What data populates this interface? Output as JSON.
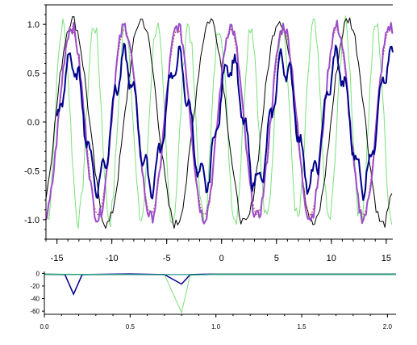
{
  "chart_data": [
    {
      "type": "line",
      "xlim": [
        -16,
        15.6
      ],
      "ylim": [
        -1.2,
        1.2
      ],
      "x_ticks": [
        -15,
        -10,
        -5,
        0,
        5,
        10,
        15
      ],
      "x_tick_labels": [
        "-15",
        "-10",
        "-5",
        "0",
        "5",
        "10",
        "15"
      ],
      "y_ticks": [
        1.0,
        0.5,
        0.0,
        -0.5,
        -1.0
      ],
      "y_tick_labels": [
        "1.0",
        "0.5",
        "0.0",
        "-0.5",
        "-1.0"
      ],
      "grid": false,
      "series": [
        {
          "style": "solid-thin",
          "color": "#7CE07C",
          "function": "sin(2.2x)",
          "x_range": [
            -16,
            15.6
          ],
          "amplitude": 1.0,
          "y_start": 0.9,
          "y_end": 0.9
        },
        {
          "style": "solid-thin",
          "color": "#000000",
          "function": "sin(x)",
          "x_range": [
            -16,
            15.6
          ],
          "amplitude": 1.1,
          "y_start": -0.2,
          "y_end": -0.1
        },
        {
          "style": "dotted",
          "color": "#C0504D",
          "function": "sin(1.3x)",
          "x_range": [
            -16,
            15.6
          ],
          "amplitude": 0.95,
          "y_start": -0.6,
          "y_end": -0.9
        },
        {
          "style": "solid-thick",
          "color": "#9B4DCA",
          "function": "sin(1.3x) + noise",
          "x_range": [
            -16,
            15.6
          ],
          "amplitude": 1.0,
          "y_start": -0.95,
          "y_end": -0.95
        },
        {
          "style": "solid-thick",
          "color": "#00008B",
          "function": "0.65 sin(1.3x) + 0.15 sin(6x)",
          "x_range": [
            -15,
            15.6
          ],
          "amplitude": 0.7,
          "y_start": -0.4,
          "y_end": -0.55
        }
      ]
    },
    {
      "type": "line",
      "xlim": [
        0,
        2.05
      ],
      "ylim": [
        -65,
        3
      ],
      "x_ticks": [
        0.0,
        0.5,
        1.0,
        1.5,
        2.0
      ],
      "x_tick_labels": [
        "0.0",
        "0.5",
        "1.0",
        "1.5",
        "2.0"
      ],
      "y_ticks": [
        0,
        -20,
        -40,
        -60
      ],
      "y_tick_labels": [
        "0",
        "-20",
        "-40",
        "-60"
      ],
      "grid": false,
      "series": [
        {
          "color": "#00008B",
          "points": [
            [
              0.0,
              -1
            ],
            [
              0.12,
              -2
            ],
            [
              0.17,
              -33
            ],
            [
              0.22,
              -2
            ],
            [
              0.5,
              -1
            ],
            [
              0.7,
              -2
            ],
            [
              0.8,
              -17
            ],
            [
              0.85,
              -2
            ],
            [
              1.0,
              -1
            ],
            [
              1.5,
              -1
            ],
            [
              2.05,
              -1
            ]
          ]
        },
        {
          "color": "#7CE07C",
          "points": [
            [
              0.0,
              -1
            ],
            [
              0.7,
              -2
            ],
            [
              0.8,
              -62
            ],
            [
              0.85,
              -3
            ],
            [
              1.0,
              -1
            ],
            [
              2.05,
              -1
            ]
          ]
        },
        {
          "color": "#008080",
          "points": [
            [
              0.0,
              -2
            ],
            [
              0.3,
              -2
            ],
            [
              0.6,
              -2
            ],
            [
              1.0,
              -2
            ],
            [
              1.5,
              -2
            ],
            [
              2.05,
              -2
            ]
          ]
        }
      ]
    }
  ]
}
